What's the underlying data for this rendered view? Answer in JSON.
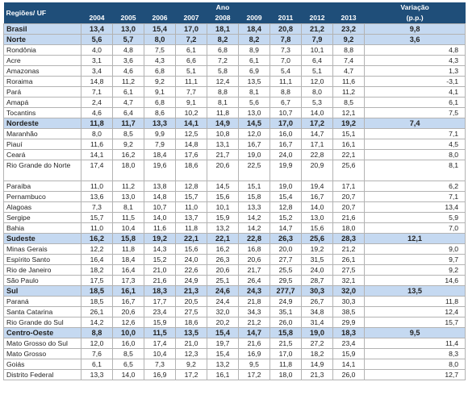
{
  "header": {
    "region_label": "Regiões/ UF",
    "year_group": "Ano",
    "variation_label": "Variação",
    "variation_unit": "(p.p.)",
    "years": [
      "2004",
      "2005",
      "2006",
      "2007",
      "2008",
      "2009",
      "2011",
      "2012",
      "2013"
    ]
  },
  "rows": [
    {
      "name": "Brasil",
      "region": true,
      "values": [
        "13,4",
        "13,0",
        "15,4",
        "17,0",
        "18,1",
        "18,4",
        "20,8",
        "21,2",
        "23,2"
      ],
      "variation": "9,8"
    },
    {
      "name": "Norte",
      "region": true,
      "values": [
        "5,6",
        "5,7",
        "8,0",
        "7,2",
        "8,2",
        "8,2",
        "7,8",
        "7,9",
        "9,2"
      ],
      "variation": "3,6"
    },
    {
      "name": "Rondônia",
      "values": [
        "4,0",
        "4,8",
        "7,5",
        "6,1",
        "6,8",
        "8,9",
        "7,3",
        "10,1",
        "8,8"
      ],
      "variation": "4,8"
    },
    {
      "name": "Acre",
      "values": [
        "3,1",
        "3,6",
        "4,3",
        "6,6",
        "7,2",
        "6,1",
        "7,0",
        "6,4",
        "7,4"
      ],
      "variation": "4,3"
    },
    {
      "name": "Amazonas",
      "values": [
        "3,4",
        "4,6",
        "6,8",
        "5,1",
        "5,8",
        "6,9",
        "5,4",
        "5,1",
        "4,7"
      ],
      "variation": "1,3"
    },
    {
      "name": "Roraima",
      "values": [
        "14,8",
        "11,2",
        "9,2",
        "11,1",
        "12,4",
        "13,5",
        "11,1",
        "12,0",
        "11,6"
      ],
      "variation": "-3,1"
    },
    {
      "name": "Pará",
      "values": [
        "7,1",
        "6,1",
        "9,1",
        "7,7",
        "8,8",
        "8,1",
        "8,8",
        "8,0",
        "11,2"
      ],
      "variation": "4,1"
    },
    {
      "name": "Amapá",
      "values": [
        "2,4",
        "4,7",
        "6,8",
        "9,1",
        "8,1",
        "5,6",
        "6,7",
        "5,3",
        "8,5"
      ],
      "variation": "6,1"
    },
    {
      "name": "Tocantins",
      "values": [
        "4,6",
        "6,4",
        "8,6",
        "10,2",
        "11,8",
        "13,0",
        "10,7",
        "14,0",
        "12,1"
      ],
      "variation": "7,5"
    },
    {
      "name": "Nordeste",
      "region": true,
      "values": [
        "11,8",
        "11,7",
        "13,3",
        "14,1",
        "14,9",
        "14,5",
        "17,0",
        "17,2",
        "19,2"
      ],
      "variation": "7,4"
    },
    {
      "name": "Maranhão",
      "values": [
        "8,0",
        "8,5",
        "9,9",
        "12,5",
        "10,8",
        "12,0",
        "16,0",
        "14,7",
        "15,1"
      ],
      "variation": "7,1"
    },
    {
      "name": "Piauí",
      "values": [
        "11,6",
        "9,2",
        "7,9",
        "14,8",
        "13,1",
        "16,7",
        "16,7",
        "17,1",
        "16,1"
      ],
      "variation": "4,5"
    },
    {
      "name": "Ceará",
      "values": [
        "14,1",
        "16,2",
        "18,4",
        "17,6",
        "21,7",
        "19,0",
        "24,0",
        "22,8",
        "22,1"
      ],
      "variation": "8,0"
    },
    {
      "name": "Rio Grande do Norte",
      "tall": true,
      "values": [
        "17,4",
        "18,0",
        "19,6",
        "18,6",
        "20,6",
        "22,5",
        "19,9",
        "20,9",
        "25,6"
      ],
      "variation": "8,1"
    },
    {
      "name": "Paraíba",
      "values": [
        "11,0",
        "11,2",
        "13,8",
        "12,8",
        "14,5",
        "15,1",
        "19,0",
        "19,4",
        "17,1"
      ],
      "variation": "6,2"
    },
    {
      "name": "Pernambuco",
      "values": [
        "13,6",
        "13,0",
        "14,8",
        "15,7",
        "15,6",
        "15,8",
        "15,4",
        "16,7",
        "20,7"
      ],
      "variation": "7,1"
    },
    {
      "name": "Alagoas",
      "values": [
        "7,3",
        "8,1",
        "10,7",
        "11,0",
        "10,1",
        "13,3",
        "12,8",
        "14,0",
        "20,7"
      ],
      "variation": "13,4"
    },
    {
      "name": "Sergipe",
      "values": [
        "15,7",
        "11,5",
        "14,0",
        "13,7",
        "15,9",
        "14,2",
        "15,2",
        "13,0",
        "21,6"
      ],
      "variation": "5,9"
    },
    {
      "name": "Bahia",
      "values": [
        "11,0",
        "10,4",
        "11,6",
        "11,8",
        "13,2",
        "14,2",
        "14,7",
        "15,6",
        "18,0"
      ],
      "variation": "7,0"
    },
    {
      "name": "Sudeste",
      "region": true,
      "values": [
        "16,2",
        "15,8",
        "19,2",
        "22,1",
        "22,1",
        "22,8",
        "26,3",
        "25,6",
        "28,3"
      ],
      "variation": "12,1"
    },
    {
      "name": "Minas Gerais",
      "values": [
        "12,2",
        "11,8",
        "14,3",
        "15,6",
        "16,2",
        "16,8",
        "20,0",
        "19,2",
        "21,2"
      ],
      "variation": "9,0"
    },
    {
      "name": "Espírito Santo",
      "values": [
        "16,4",
        "18,4",
        "15,2",
        "24,0",
        "26,3",
        "20,6",
        "27,7",
        "31,5",
        "26,1"
      ],
      "variation": "9,7"
    },
    {
      "name": "Rio de Janeiro",
      "values": [
        "18,2",
        "16,4",
        "21,0",
        "22,6",
        "20,6",
        "21,7",
        "25,5",
        "24,0",
        "27,5"
      ],
      "variation": "9,2"
    },
    {
      "name": "São Paulo",
      "values": [
        "17,5",
        "17,3",
        "21,6",
        "24,9",
        "25,1",
        "26,4",
        "29,5",
        "28,7",
        "32,1"
      ],
      "variation": "14,6"
    },
    {
      "name": "Sul",
      "region": true,
      "values": [
        "18,5",
        "16,1",
        "18,3",
        "21,3",
        "24,6",
        "24,3",
        "277,7",
        "30,3",
        "32,0"
      ],
      "variation": "13,5"
    },
    {
      "name": "Paraná",
      "values": [
        "18,5",
        "16,7",
        "17,7",
        "20,5",
        "24,4",
        "21,8",
        "24,9",
        "26,7",
        "30,3"
      ],
      "variation": "11,8"
    },
    {
      "name": "Santa Catarina",
      "values": [
        "26,1",
        "20,6",
        "23,4",
        "27,5",
        "32,0",
        "34,3",
        "35,1",
        "34,8",
        "38,5"
      ],
      "variation": "12,4"
    },
    {
      "name": "Rio Grande do Sul",
      "values": [
        "14,2",
        "12,6",
        "15,9",
        "18,6",
        "20,2",
        "21,2",
        "26,0",
        "31,4",
        "29,9"
      ],
      "variation": "15,7"
    },
    {
      "name": "Centro-Oeste",
      "region": true,
      "values": [
        "8,8",
        "10,0",
        "11,5",
        "13,5",
        "15,4",
        "14,7",
        "15,8",
        "19,0",
        "18,3"
      ],
      "variation": "9,5"
    },
    {
      "name": "Mato Grosso do Sul",
      "values": [
        "12,0",
        "16,0",
        "17,4",
        "21,0",
        "19,7",
        "21,6",
        "21,5",
        "27,2",
        "23,4"
      ],
      "variation": "11,4"
    },
    {
      "name": "Mato Grosso",
      "values": [
        "7,6",
        "8,5",
        "10,4",
        "12,3",
        "15,4",
        "16,9",
        "17,0",
        "18,2",
        "15,9"
      ],
      "variation": "8,3"
    },
    {
      "name": "Goiás",
      "values": [
        "6,1",
        "6,5",
        "7,3",
        "9,2",
        "13,2",
        "9,5",
        "11,8",
        "14,9",
        "14,1"
      ],
      "variation": "8,0"
    },
    {
      "name": "Distrito Federal",
      "values": [
        "13,3",
        "14,0",
        "16,9",
        "17,2",
        "16,1",
        "17,2",
        "18,0",
        "21,3",
        "26,0"
      ],
      "variation": "12,7"
    }
  ]
}
